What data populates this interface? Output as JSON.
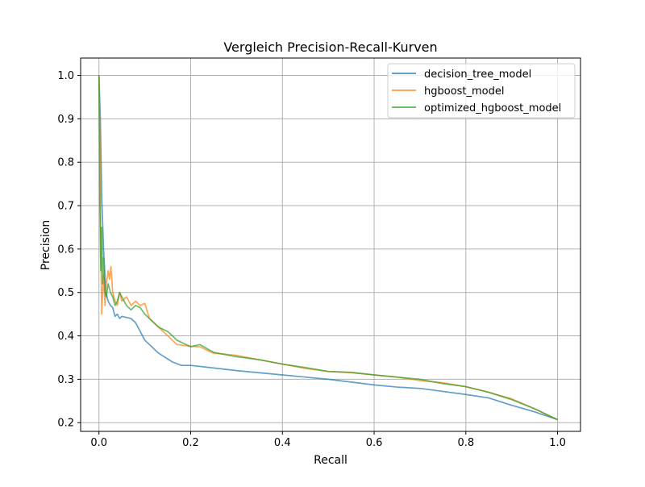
{
  "chart_data": {
    "type": "line",
    "title": "Vergleich Precision-Recall-Kurven",
    "xlabel": "Recall",
    "ylabel": "Precision",
    "xlim": [
      -0.04,
      1.05
    ],
    "ylim": [
      0.18,
      1.04
    ],
    "x_ticks": [
      0.0,
      0.2,
      0.4,
      0.6,
      0.8,
      1.0
    ],
    "x_tick_labels": [
      "0.0",
      "0.2",
      "0.4",
      "0.6",
      "0.8",
      "1.0"
    ],
    "y_ticks": [
      0.2,
      0.3,
      0.4,
      0.5,
      0.6,
      0.7,
      0.8,
      0.9,
      1.0
    ],
    "y_tick_labels": [
      "0.2",
      "0.3",
      "0.4",
      "0.5",
      "0.6",
      "0.7",
      "0.8",
      "0.9",
      "1.0"
    ],
    "grid": true,
    "legend_position": "top-right",
    "series": [
      {
        "name": "decision_tree_model",
        "color": "#1f77b4",
        "points": [
          [
            0.0,
            1.0
          ],
          [
            0.003,
            0.9
          ],
          [
            0.006,
            0.72
          ],
          [
            0.01,
            0.6
          ],
          [
            0.015,
            0.5
          ],
          [
            0.02,
            0.48
          ],
          [
            0.025,
            0.47
          ],
          [
            0.03,
            0.465
          ],
          [
            0.035,
            0.445
          ],
          [
            0.04,
            0.45
          ],
          [
            0.045,
            0.44
          ],
          [
            0.05,
            0.445
          ],
          [
            0.07,
            0.44
          ],
          [
            0.08,
            0.43
          ],
          [
            0.1,
            0.39
          ],
          [
            0.13,
            0.36
          ],
          [
            0.16,
            0.34
          ],
          [
            0.18,
            0.332
          ],
          [
            0.2,
            0.332
          ],
          [
            0.3,
            0.32
          ],
          [
            0.4,
            0.31
          ],
          [
            0.45,
            0.305
          ],
          [
            0.5,
            0.3
          ],
          [
            0.6,
            0.287
          ],
          [
            0.65,
            0.282
          ],
          [
            0.7,
            0.279
          ],
          [
            0.8,
            0.265
          ],
          [
            0.85,
            0.257
          ],
          [
            0.9,
            0.24
          ],
          [
            0.95,
            0.225
          ],
          [
            1.0,
            0.207
          ]
        ]
      },
      {
        "name": "hgboost_model",
        "color": "#ff7f0e",
        "points": [
          [
            0.0,
            1.0
          ],
          [
            0.002,
            0.85
          ],
          [
            0.004,
            0.6
          ],
          [
            0.006,
            0.45
          ],
          [
            0.008,
            0.5
          ],
          [
            0.01,
            0.54
          ],
          [
            0.013,
            0.47
          ],
          [
            0.016,
            0.52
          ],
          [
            0.02,
            0.55
          ],
          [
            0.023,
            0.53
          ],
          [
            0.026,
            0.56
          ],
          [
            0.03,
            0.5
          ],
          [
            0.035,
            0.48
          ],
          [
            0.04,
            0.47
          ],
          [
            0.045,
            0.5
          ],
          [
            0.05,
            0.48
          ],
          [
            0.06,
            0.49
          ],
          [
            0.07,
            0.47
          ],
          [
            0.08,
            0.48
          ],
          [
            0.09,
            0.47
          ],
          [
            0.1,
            0.475
          ],
          [
            0.11,
            0.44
          ],
          [
            0.13,
            0.42
          ],
          [
            0.15,
            0.4
          ],
          [
            0.17,
            0.38
          ],
          [
            0.2,
            0.376
          ],
          [
            0.22,
            0.375
          ],
          [
            0.25,
            0.36
          ],
          [
            0.3,
            0.355
          ],
          [
            0.35,
            0.345
          ],
          [
            0.4,
            0.335
          ],
          [
            0.45,
            0.325
          ],
          [
            0.5,
            0.318
          ],
          [
            0.55,
            0.315
          ],
          [
            0.6,
            0.31
          ],
          [
            0.65,
            0.305
          ],
          [
            0.7,
            0.297
          ],
          [
            0.75,
            0.292
          ],
          [
            0.8,
            0.283
          ],
          [
            0.85,
            0.27
          ],
          [
            0.9,
            0.255
          ],
          [
            0.95,
            0.232
          ],
          [
            1.0,
            0.207
          ]
        ]
      },
      {
        "name": "optimized_hgboost_model",
        "color": "#2ca02c",
        "points": [
          [
            0.0,
            1.0
          ],
          [
            0.002,
            0.7
          ],
          [
            0.004,
            0.55
          ],
          [
            0.006,
            0.65
          ],
          [
            0.008,
            0.52
          ],
          [
            0.01,
            0.58
          ],
          [
            0.013,
            0.5
          ],
          [
            0.016,
            0.49
          ],
          [
            0.02,
            0.52
          ],
          [
            0.025,
            0.5
          ],
          [
            0.03,
            0.49
          ],
          [
            0.035,
            0.47
          ],
          [
            0.04,
            0.48
          ],
          [
            0.045,
            0.5
          ],
          [
            0.05,
            0.49
          ],
          [
            0.06,
            0.47
          ],
          [
            0.07,
            0.46
          ],
          [
            0.08,
            0.47
          ],
          [
            0.09,
            0.465
          ],
          [
            0.1,
            0.45
          ],
          [
            0.11,
            0.44
          ],
          [
            0.13,
            0.42
          ],
          [
            0.15,
            0.41
          ],
          [
            0.17,
            0.39
          ],
          [
            0.2,
            0.375
          ],
          [
            0.22,
            0.38
          ],
          [
            0.25,
            0.362
          ],
          [
            0.3,
            0.352
          ],
          [
            0.35,
            0.345
          ],
          [
            0.4,
            0.335
          ],
          [
            0.45,
            0.327
          ],
          [
            0.5,
            0.318
          ],
          [
            0.55,
            0.316
          ],
          [
            0.6,
            0.31
          ],
          [
            0.65,
            0.305
          ],
          [
            0.7,
            0.3
          ],
          [
            0.75,
            0.29
          ],
          [
            0.8,
            0.283
          ],
          [
            0.85,
            0.27
          ],
          [
            0.9,
            0.253
          ],
          [
            0.95,
            0.232
          ],
          [
            1.0,
            0.207
          ]
        ]
      }
    ]
  }
}
